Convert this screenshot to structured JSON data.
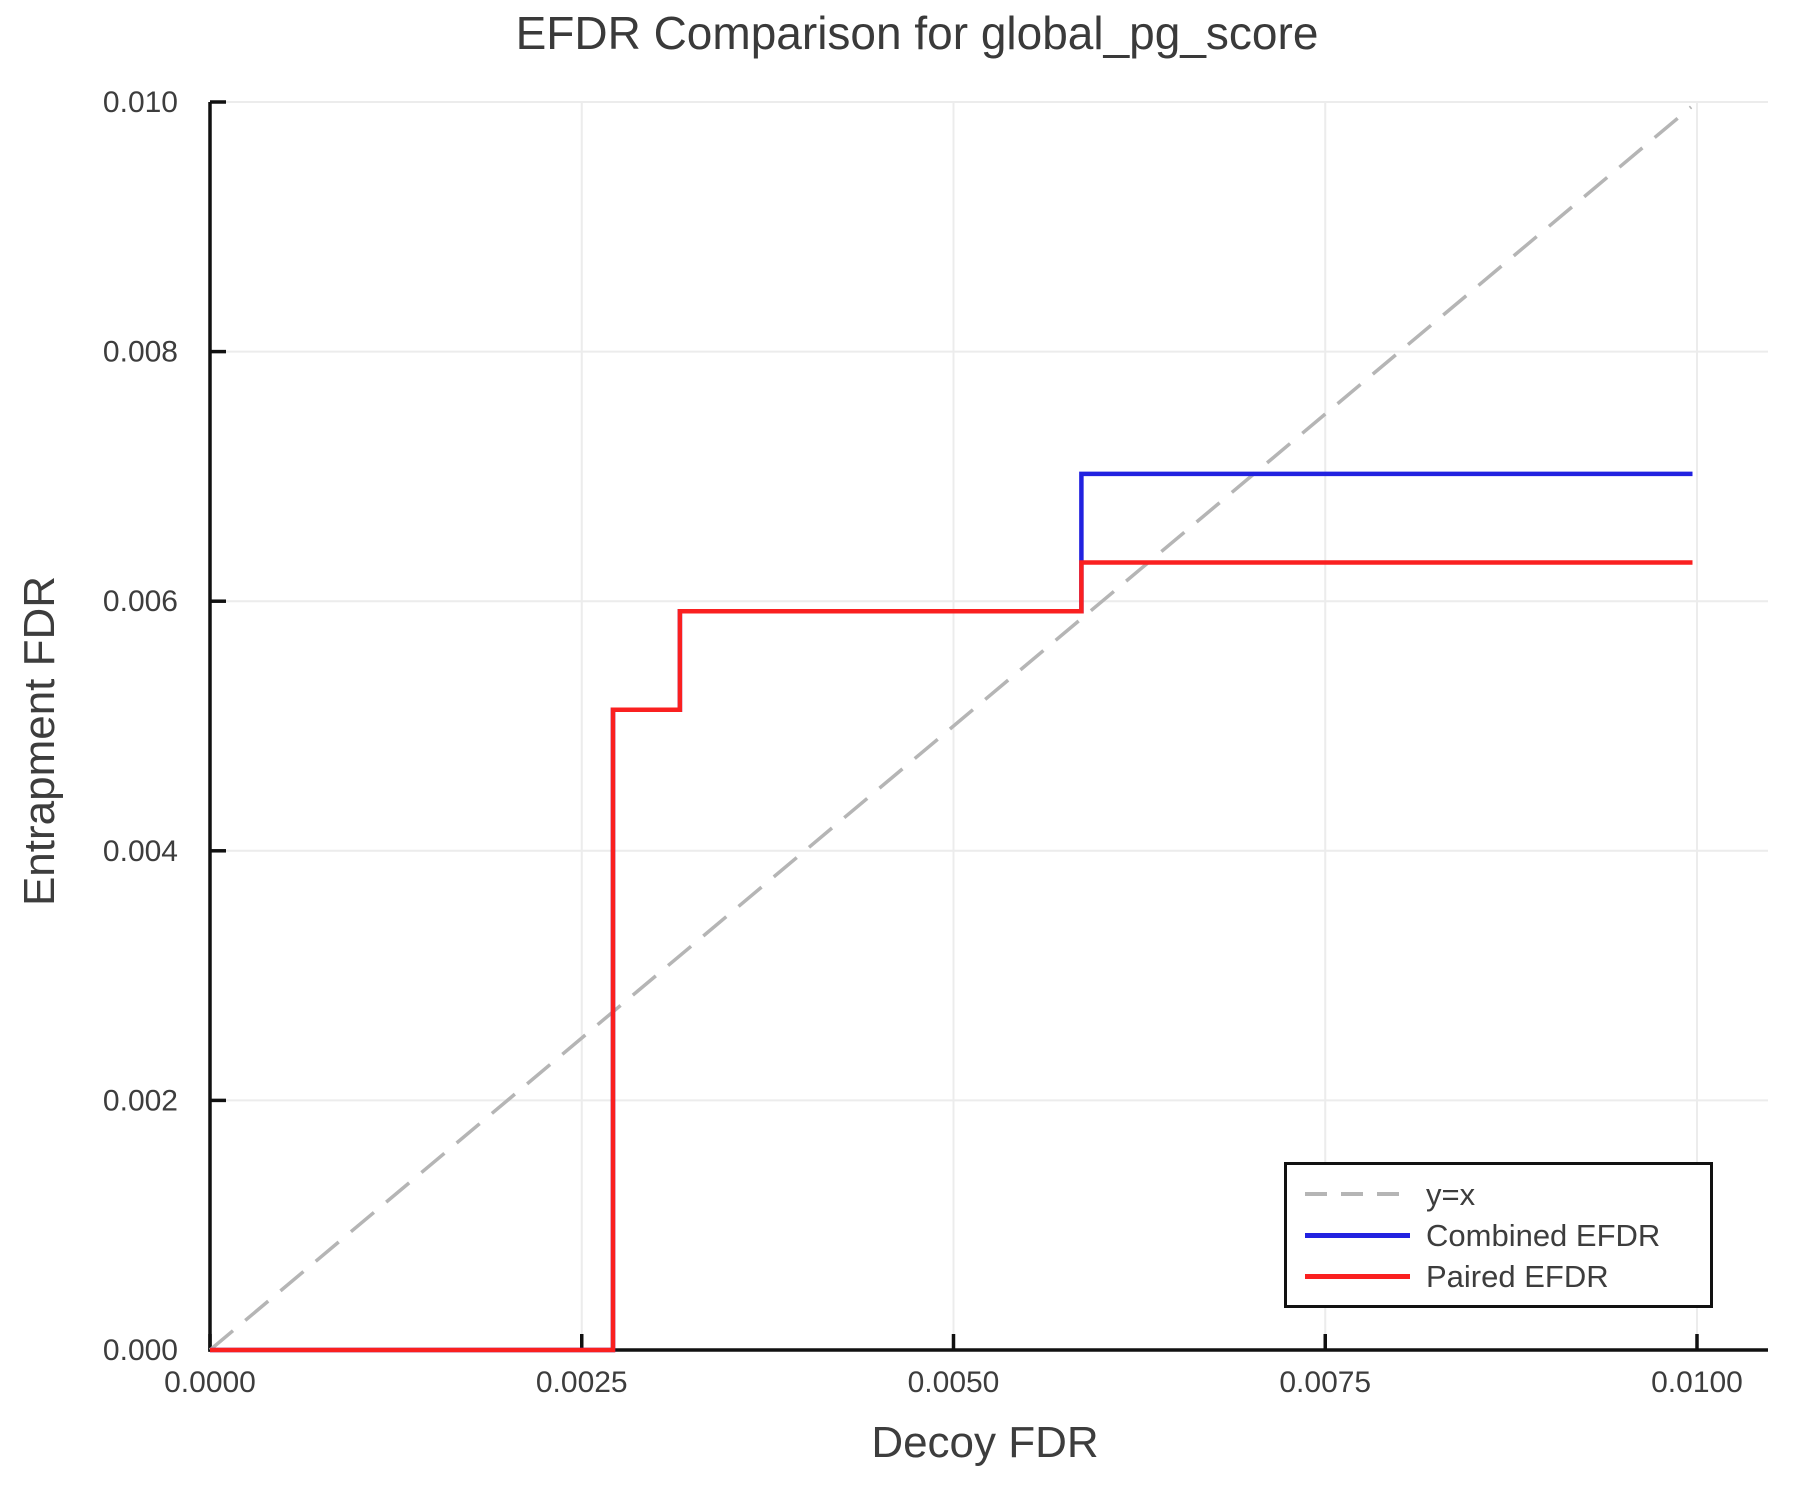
{
  "chart_data": {
    "type": "line",
    "title": "EFDR Comparison for global_pg_score",
    "xlabel": "Decoy FDR",
    "ylabel": "Entrapment FDR",
    "xlim": [
      0,
      0.0105
    ],
    "ylim": [
      0,
      0.01
    ],
    "grid": true,
    "legend_position": "lower right",
    "x_ticks": [
      {
        "value": 0.0,
        "label": "0.0000"
      },
      {
        "value": 0.0025,
        "label": "0.0025"
      },
      {
        "value": 0.005,
        "label": "0.0050"
      },
      {
        "value": 0.0075,
        "label": "0.0075"
      },
      {
        "value": 0.01,
        "label": "0.0100"
      }
    ],
    "y_ticks": [
      {
        "value": 0.0,
        "label": "0.000"
      },
      {
        "value": 0.002,
        "label": "0.002"
      },
      {
        "value": 0.004,
        "label": "0.004"
      },
      {
        "value": 0.006,
        "label": "0.006"
      },
      {
        "value": 0.008,
        "label": "0.008"
      },
      {
        "value": 0.01,
        "label": "0.010"
      }
    ],
    "series": [
      {
        "name": "y=x",
        "line_style": "dashed",
        "color": "#b5b5b5",
        "points": [
          [
            0,
            0
          ],
          [
            0.00996,
            0.00996
          ]
        ]
      },
      {
        "name": "Combined EFDR",
        "line_style": "solid",
        "color": "#2222e0",
        "points": [
          [
            0,
            0
          ],
          [
            0.00271,
            0
          ],
          [
            0.00271,
            0.00513
          ],
          [
            0.00316,
            0.00513
          ],
          [
            0.00316,
            0.00592
          ],
          [
            0.00586,
            0.00592
          ],
          [
            0.00586,
            0.00702
          ],
          [
            0.00997,
            0.00702
          ]
        ]
      },
      {
        "name": "Paired EFDR",
        "line_style": "solid",
        "color": "#fa2020",
        "points": [
          [
            0,
            0
          ],
          [
            0.00271,
            0
          ],
          [
            0.00271,
            0.00513
          ],
          [
            0.00316,
            0.00513
          ],
          [
            0.00316,
            0.00592
          ],
          [
            0.00586,
            0.00592
          ],
          [
            0.00586,
            0.00631
          ],
          [
            0.00997,
            0.00631
          ]
        ]
      }
    ],
    "legend": [
      {
        "label": "y=x"
      },
      {
        "label": "Combined EFDR"
      },
      {
        "label": "Paired EFDR"
      }
    ],
    "colors": {
      "grid": "#ececec",
      "spine": "#111111",
      "tick_text": "#3d3d3d",
      "background": "#ffffff"
    }
  }
}
